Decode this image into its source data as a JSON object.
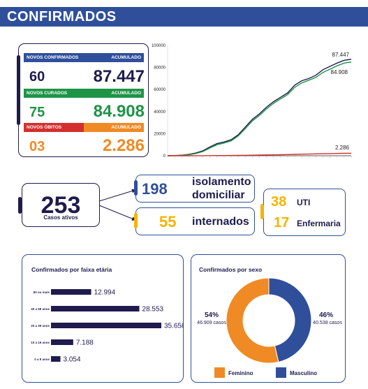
{
  "header": {
    "title": "CONFIRMADOS"
  },
  "stats": [
    {
      "label": "NOVOS CONFIRMADOS",
      "acc_label": "ACUMULADO",
      "day": "60",
      "acc": "87.447",
      "bar_color": "#2f4f9b",
      "text_color": "#1f1b4d"
    },
    {
      "label": "NOVOS CURADOS",
      "acc_label": "ACUMULADO",
      "day": "75",
      "acc": "84.908",
      "bar_color": "#1e9447",
      "text_color": "#1e9447"
    },
    {
      "label": "NOVOS ÓBITOS",
      "acc_label": "ACUMULADO",
      "day": "03",
      "acc": "2.286",
      "bar_color": "#f08a24",
      "text_color": "#f08a24",
      "bar_left_color": "#d32f2f"
    }
  ],
  "casos_ativos": {
    "value": "253",
    "label": "Casos ativos"
  },
  "isolamento": {
    "value": "198",
    "label_line1": "isolamento",
    "label_line2": "domiciliar"
  },
  "internados": {
    "value": "55",
    "label": "internados"
  },
  "uti": {
    "value": "38",
    "label": "UTI"
  },
  "enfermaria": {
    "value": "17",
    "label": "Enfermaria"
  },
  "colors": {
    "navy": "#1f1b4d",
    "blue": "#2f4f9b",
    "green": "#1e9447",
    "orange": "#f08a24",
    "yellow": "#f4b400",
    "red": "#d32f2f"
  },
  "chart_data": [
    {
      "type": "line",
      "title": "",
      "ylim": [
        0,
        100000
      ],
      "yticks": [
        "0",
        "20000",
        "40000",
        "60000",
        "80000",
        "100000"
      ],
      "x": [
        0,
        1,
        2,
        3,
        4,
        5,
        6,
        7,
        8,
        9,
        10,
        11,
        12,
        13,
        14,
        15,
        16,
        17,
        18,
        19,
        20,
        21,
        22,
        23,
        24,
        25,
        26
      ],
      "series": [
        {
          "name": "",
          "color": "#1f1b4d",
          "end_label": "87.447",
          "values": [
            0,
            200,
            500,
            1200,
            2500,
            4500,
            8000,
            11000,
            12500,
            14500,
            19000,
            26000,
            33000,
            38000,
            44000,
            49000,
            53000,
            57000,
            64000,
            68000,
            70000,
            73000,
            78000,
            81000,
            84000,
            86500,
            87447
          ]
        },
        {
          "name": "",
          "color": "#1e9447",
          "end_label": "84.908",
          "values": [
            0,
            100,
            300,
            900,
            2000,
            3800,
            7000,
            10000,
            11500,
            13500,
            18000,
            24500,
            31500,
            36500,
            42500,
            47500,
            51500,
            55500,
            62000,
            66000,
            68500,
            71000,
            75500,
            78500,
            81500,
            84000,
            84908
          ]
        },
        {
          "name": "",
          "color": "#d32f2f",
          "end_label": "2.286",
          "values": [
            0,
            5,
            10,
            20,
            40,
            70,
            110,
            160,
            210,
            270,
            340,
            430,
            520,
            620,
            730,
            850,
            970,
            1100,
            1250,
            1400,
            1550,
            1700,
            1850,
            1980,
            2100,
            2200,
            2286
          ]
        }
      ]
    },
    {
      "type": "bar",
      "title": "Confirmados por faixa etária",
      "categories": [
        "60 ou mais",
        "40 a 59 anos",
        "20 a 39 anos",
        "10 a 19 anos",
        "0 a 9 anos"
      ],
      "values": [
        12994,
        28553,
        35658,
        7188,
        3054
      ],
      "labels": [
        "12.994",
        "28.553",
        "35.658",
        "7.188",
        "3.054"
      ]
    },
    {
      "type": "pie",
      "title": "Confirmados por sexo",
      "categories": [
        "Feminino",
        "Masculino"
      ],
      "values": [
        46909,
        40538
      ],
      "percent_labels": [
        "54%",
        "46%"
      ],
      "case_labels": [
        "46.909 casos",
        "40.538 casos"
      ],
      "colors": [
        "#f08a24",
        "#2f4f9b"
      ]
    }
  ]
}
